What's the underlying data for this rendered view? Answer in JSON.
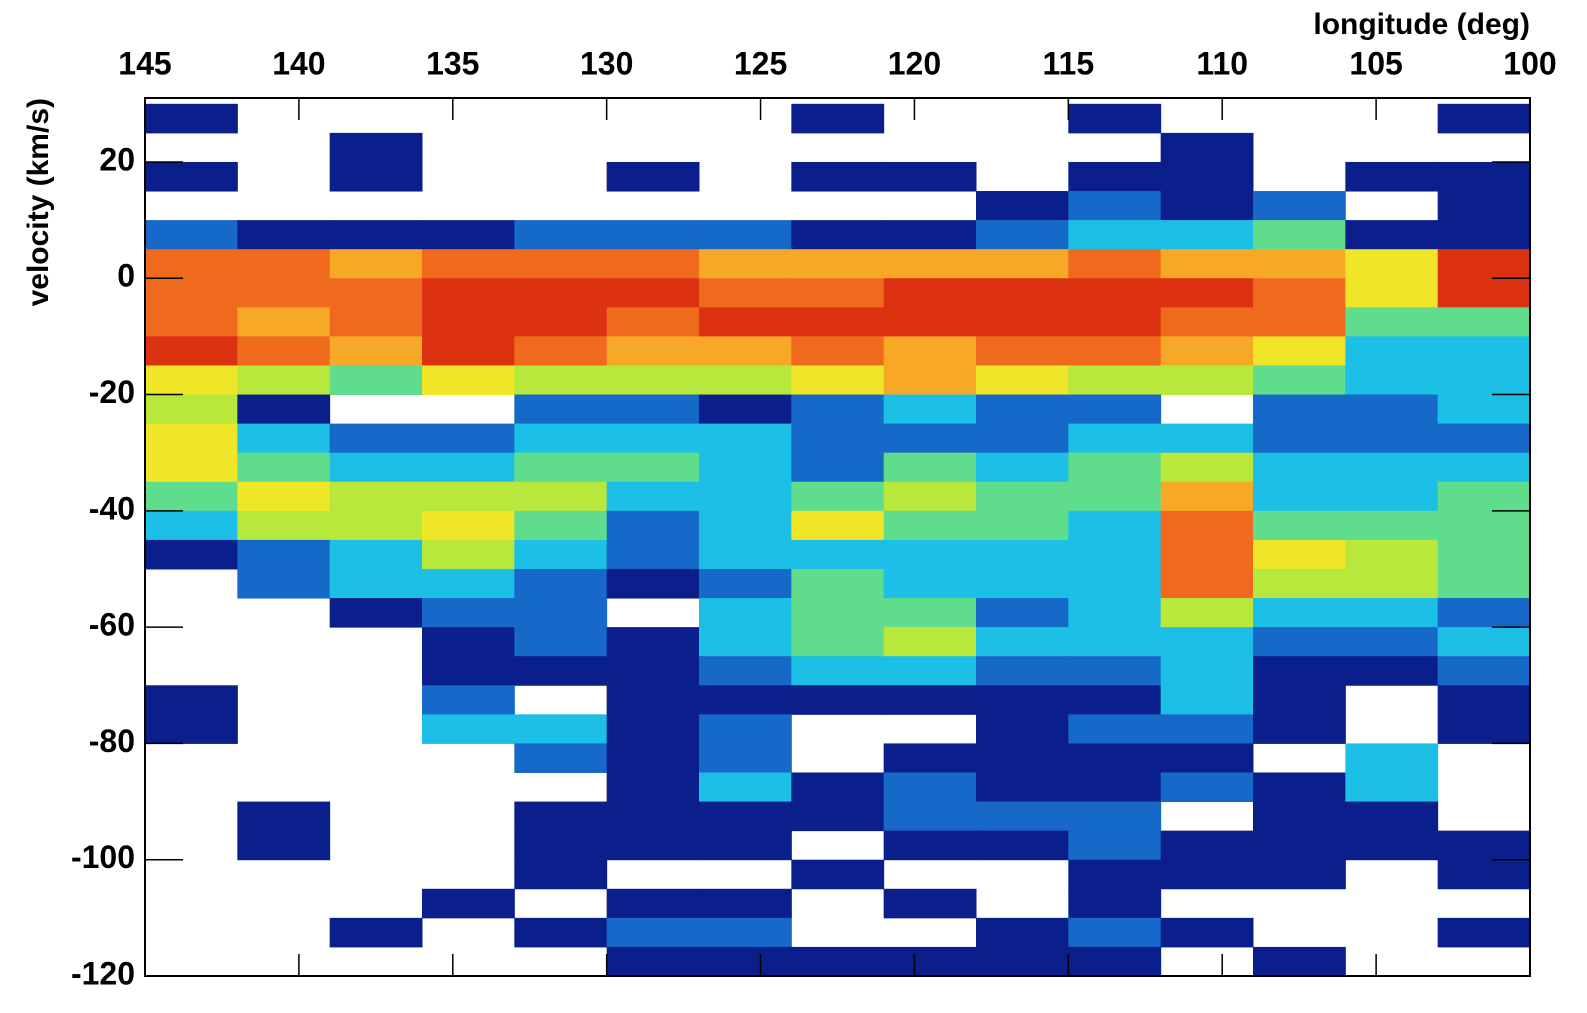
{
  "chart_data": {
    "type": "heatmap",
    "x_label": "longitude (deg)",
    "y_label": "velocity (km/s)",
    "xlim": [
      145,
      100
    ],
    "ylim": [
      -120,
      31
    ],
    "xticks": [
      145,
      140,
      135,
      130,
      125,
      120,
      115,
      110,
      105,
      100
    ],
    "yticks": [
      -120,
      -100,
      -80,
      -60,
      -40,
      -20,
      0,
      20
    ],
    "x_bins": [
      145,
      142,
      139,
      136,
      133,
      130,
      127,
      124,
      121,
      118,
      115,
      112,
      109,
      106,
      103,
      100
    ],
    "y_bins": [
      30,
      25,
      20,
      15,
      10,
      5,
      0,
      -5,
      -10,
      -15,
      -20,
      -25,
      -30,
      -35,
      -40,
      -45,
      -50,
      -55,
      -60,
      -65,
      -70,
      -75,
      -80,
      -85,
      -90,
      -95,
      -100,
      -105,
      -110,
      -115,
      -120
    ],
    "colors": [
      "#0a1f8c",
      "#1669c8",
      "#1cc0e6",
      "#5fdc8c",
      "#b8e83c",
      "#f0e628",
      "#f7a826",
      "#f06a1e",
      "#dc3212",
      "#a01408"
    ],
    "z": [
      [
        1,
        null,
        null,
        null,
        null,
        null,
        null,
        1,
        null,
        null,
        1,
        null,
        null,
        null,
        1
      ],
      [
        null,
        null,
        1,
        null,
        null,
        null,
        null,
        null,
        null,
        null,
        null,
        1,
        null,
        null,
        null
      ],
      [
        1,
        null,
        1,
        null,
        null,
        1,
        null,
        1,
        1,
        null,
        1,
        1,
        null,
        1,
        1
      ],
      [
        null,
        null,
        null,
        null,
        null,
        null,
        null,
        null,
        null,
        1,
        2,
        1,
        2,
        null,
        1
      ],
      [
        2,
        1,
        1,
        1,
        2,
        2,
        2,
        1,
        1,
        2,
        3,
        3,
        4,
        1,
        1
      ],
      [
        8,
        8,
        7,
        8,
        8,
        8,
        7,
        7,
        7,
        7,
        8,
        7,
        7,
        6,
        9
      ],
      [
        8,
        8,
        8,
        9,
        9,
        9,
        8,
        8,
        9,
        9,
        9,
        9,
        8,
        6,
        9
      ],
      [
        8,
        7,
        8,
        9,
        9,
        8,
        9,
        9,
        9,
        9,
        9,
        8,
        8,
        4,
        4
      ],
      [
        9,
        8,
        7,
        9,
        8,
        7,
        7,
        8,
        7,
        8,
        8,
        7,
        6,
        3,
        3
      ],
      [
        6,
        5,
        4,
        6,
        5,
        5,
        5,
        6,
        7,
        6,
        5,
        5,
        4,
        3,
        3
      ],
      [
        5,
        1,
        null,
        null,
        2,
        2,
        1,
        2,
        3,
        2,
        2,
        null,
        2,
        2,
        3
      ],
      [
        6,
        3,
        2,
        2,
        3,
        3,
        3,
        2,
        2,
        2,
        3,
        3,
        2,
        2,
        2
      ],
      [
        6,
        4,
        3,
        3,
        4,
        4,
        3,
        2,
        4,
        3,
        4,
        5,
        3,
        3,
        3
      ],
      [
        4,
        6,
        5,
        5,
        5,
        3,
        3,
        4,
        5,
        4,
        4,
        7,
        3,
        3,
        4
      ],
      [
        3,
        5,
        5,
        6,
        4,
        2,
        3,
        6,
        4,
        4,
        3,
        8,
        4,
        4,
        4
      ],
      [
        1,
        2,
        3,
        5,
        3,
        2,
        3,
        3,
        3,
        3,
        3,
        8,
        6,
        5,
        4
      ],
      [
        null,
        2,
        3,
        3,
        2,
        1,
        2,
        4,
        3,
        3,
        3,
        8,
        5,
        5,
        4
      ],
      [
        null,
        null,
        1,
        2,
        2,
        null,
        3,
        4,
        4,
        2,
        3,
        5,
        3,
        3,
        2
      ],
      [
        null,
        null,
        null,
        1,
        2,
        1,
        3,
        4,
        5,
        3,
        3,
        3,
        2,
        2,
        3
      ],
      [
        null,
        null,
        null,
        1,
        1,
        1,
        2,
        3,
        3,
        2,
        2,
        3,
        1,
        1,
        2
      ],
      [
        1,
        null,
        null,
        2,
        null,
        1,
        1,
        1,
        1,
        1,
        1,
        3,
        1,
        null,
        1
      ],
      [
        1,
        null,
        null,
        3,
        3,
        1,
        2,
        null,
        null,
        1,
        2,
        2,
        1,
        null,
        1
      ],
      [
        null,
        null,
        null,
        null,
        2,
        1,
        2,
        null,
        1,
        1,
        1,
        1,
        null,
        3,
        null
      ],
      [
        null,
        null,
        null,
        null,
        null,
        1,
        3,
        1,
        2,
        1,
        1,
        2,
        1,
        3,
        null
      ],
      [
        null,
        1,
        null,
        null,
        1,
        1,
        1,
        1,
        2,
        2,
        2,
        null,
        1,
        1,
        null
      ],
      [
        null,
        1,
        null,
        null,
        1,
        1,
        1,
        null,
        1,
        1,
        2,
        1,
        1,
        1,
        1
      ],
      [
        null,
        null,
        null,
        null,
        1,
        null,
        null,
        1,
        null,
        null,
        1,
        1,
        1,
        null,
        1
      ],
      [
        null,
        null,
        null,
        1,
        null,
        1,
        1,
        null,
        1,
        null,
        1,
        null,
        null,
        null,
        null
      ],
      [
        null,
        null,
        1,
        null,
        1,
        2,
        2,
        null,
        null,
        1,
        2,
        1,
        null,
        null,
        1
      ],
      [
        null,
        null,
        null,
        null,
        null,
        1,
        1,
        1,
        1,
        1,
        1,
        null,
        1,
        null,
        null
      ]
    ]
  }
}
